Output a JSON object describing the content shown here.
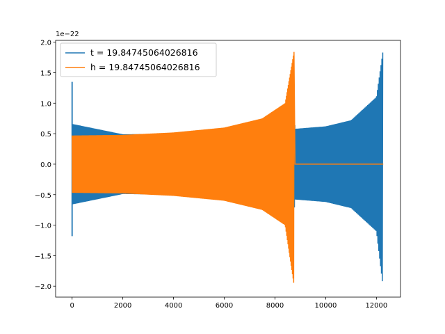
{
  "chart_data": {
    "type": "line",
    "title": "",
    "xlabel": "",
    "ylabel": "",
    "y_offset_label": "1e−22",
    "xlim": [
      -650,
      12950
    ],
    "ylim": [
      -2.18,
      2.03
    ],
    "xticks": [
      0,
      2000,
      4000,
      6000,
      8000,
      10000,
      12000
    ],
    "xtick_labels": [
      "0",
      "2000",
      "4000",
      "6000",
      "8000",
      "10000",
      "12000"
    ],
    "yticks": [
      -2.0,
      -1.5,
      -1.0,
      -0.5,
      0.0,
      0.5,
      1.0,
      1.5,
      2.0
    ],
    "ytick_labels": [
      "−2.0",
      "−1.5",
      "−1.0",
      "−0.5",
      "0.0",
      "0.5",
      "1.0",
      "1.5",
      "2.0"
    ],
    "grid": false,
    "legend_position": "upper-left",
    "series": [
      {
        "name": "t = 19.84745064026816",
        "color": "#1f77b4",
        "envelope": [
          {
            "x": 0,
            "upper": 0.66,
            "lower": -0.66
          },
          {
            "x": 2000,
            "upper": 0.49,
            "lower": -0.49
          },
          {
            "x": 4000,
            "upper": 0.5,
            "lower": -0.5
          },
          {
            "x": 6000,
            "upper": 0.55,
            "lower": -0.55
          },
          {
            "x": 8000,
            "upper": 0.66,
            "lower": -0.66
          },
          {
            "x": 8700,
            "upper": 0.98,
            "lower": -0.98
          },
          {
            "x": 8800,
            "upper": 0.58,
            "lower": -0.58
          },
          {
            "x": 10000,
            "upper": 0.62,
            "lower": -0.62
          },
          {
            "x": 11000,
            "upper": 0.72,
            "lower": -0.72
          },
          {
            "x": 12000,
            "upper": 1.1,
            "lower": -1.1
          },
          {
            "x": 12250,
            "upper": 1.83,
            "lower": -1.98
          }
        ],
        "spikes": [
          {
            "x": 0,
            "upper": 1.35,
            "lower": -1.18
          }
        ]
      },
      {
        "name": "h = 19.84745064026816",
        "color": "#ff7f0e",
        "envelope": [
          {
            "x": 0,
            "upper": 0.47,
            "lower": -0.47
          },
          {
            "x": 2000,
            "upper": 0.48,
            "lower": -0.48
          },
          {
            "x": 4000,
            "upper": 0.52,
            "lower": -0.52
          },
          {
            "x": 6000,
            "upper": 0.6,
            "lower": -0.6
          },
          {
            "x": 7500,
            "upper": 0.75,
            "lower": -0.75
          },
          {
            "x": 8400,
            "upper": 1.0,
            "lower": -1.0
          },
          {
            "x": 8750,
            "upper": 1.84,
            "lower": -1.98
          }
        ],
        "flat_after": [
          8790,
          12270
        ]
      }
    ]
  }
}
